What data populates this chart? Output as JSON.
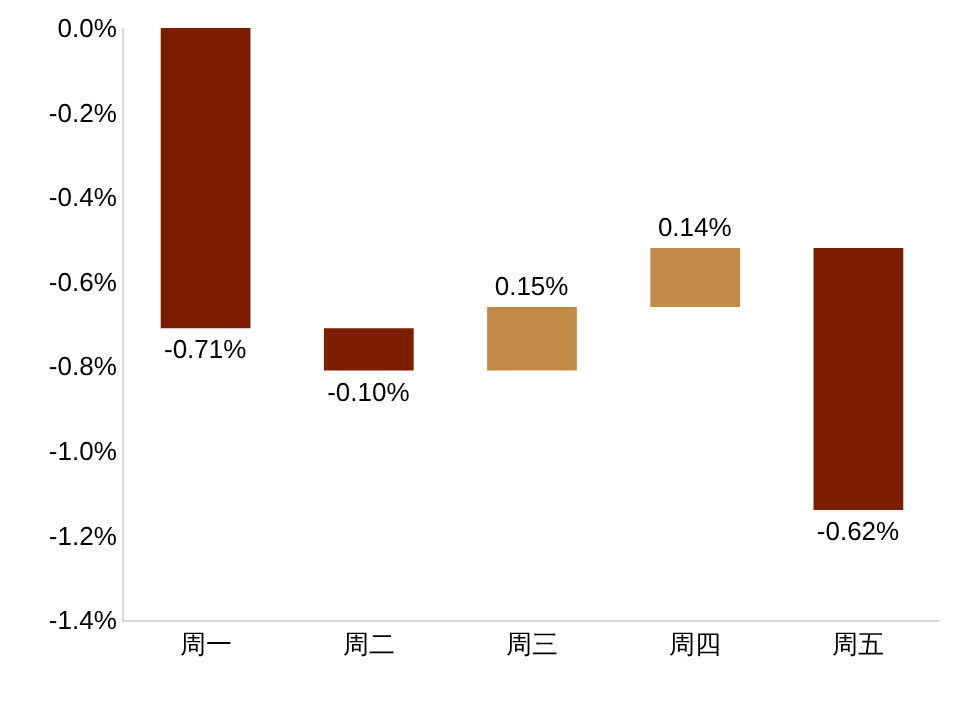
{
  "chart_data": {
    "type": "bar",
    "categories": [
      "周一",
      "周二",
      "周三",
      "周四",
      "周五"
    ],
    "values": [
      -0.71,
      -0.1,
      0.15,
      0.14,
      -0.62
    ],
    "base": [
      0,
      -0.71,
      -0.81,
      -0.66,
      -0.52
    ],
    "colors": [
      "#7b1e00",
      "#7b1e00",
      "#c08b46",
      "#c08b46",
      "#7b1e00"
    ],
    "value_labels": [
      "-0.71%",
      "-0.10%",
      "0.15%",
      "0.14%",
      "-0.62%"
    ],
    "ylim": [
      -1.4,
      0
    ],
    "yticks": [
      {
        "value": 0,
        "label": "0.0%"
      },
      {
        "value": -0.2,
        "label": "-0.2%"
      },
      {
        "value": -0.4,
        "label": "-0.4%"
      },
      {
        "value": -0.6,
        "label": "-0.6%"
      },
      {
        "value": -0.8,
        "label": "-0.8%"
      },
      {
        "value": -1.0,
        "label": "-1.0%"
      },
      {
        "value": -1.2,
        "label": "-1.2%"
      },
      {
        "value": -1.4,
        "label": "-1.4%"
      }
    ],
    "grid": false
  }
}
